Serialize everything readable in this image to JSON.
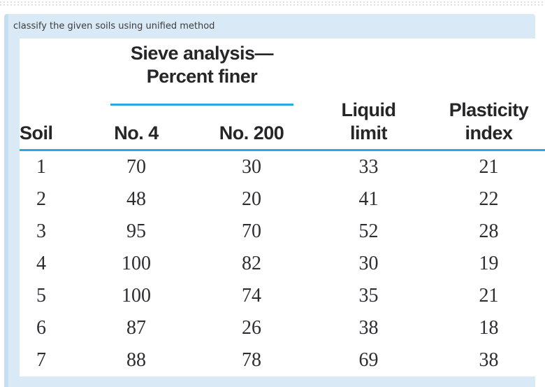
{
  "page": {
    "question": "classify the given soils using unified method"
  },
  "table": {
    "spanner": {
      "line1": "Sieve analysis—",
      "line2": "Percent finer"
    },
    "headers": {
      "soil": "Soil",
      "no4": "No. 4",
      "no200": "No. 200",
      "liquid": [
        "Liquid",
        "limit"
      ],
      "plasticity": [
        "Plasticity",
        "index"
      ]
    },
    "rows": [
      {
        "soil": "1",
        "no4": "70",
        "no200": "30",
        "ll": "33",
        "pi": "21"
      },
      {
        "soil": "2",
        "no4": "48",
        "no200": "20",
        "ll": "41",
        "pi": "22"
      },
      {
        "soil": "3",
        "no4": "95",
        "no200": "70",
        "ll": "52",
        "pi": "28"
      },
      {
        "soil": "4",
        "no4": "100",
        "no200": "82",
        "ll": "30",
        "pi": "19"
      },
      {
        "soil": "5",
        "no4": "100",
        "no200": "74",
        "ll": "35",
        "pi": "21"
      },
      {
        "soil": "6",
        "no4": "87",
        "no200": "26",
        "ll": "38",
        "pi": "18"
      },
      {
        "soil": "7",
        "no4": "88",
        "no200": "78",
        "ll": "69",
        "pi": "38"
      }
    ]
  },
  "colors": {
    "accent": "#2aa9df",
    "panel_blue": "#d9eaf6",
    "panel_bar": "#c6dff0",
    "header_text": "#26262a",
    "data_text": "#2d2d32",
    "question_text": "#3c3c3c"
  }
}
